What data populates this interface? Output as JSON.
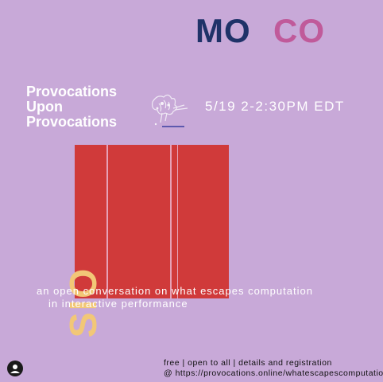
{
  "header": {
    "left_word": "MO",
    "right_word": "CO"
  },
  "event": {
    "title_lines": [
      "Provocations",
      "Upon",
      "Provocations"
    ],
    "date_time": "5/19 2-2:30PM EDT",
    "vertical_word": "SIO",
    "subtitle_line1": "an open conversation on what escapes computation",
    "subtitle_line2": "in interactive performance"
  },
  "footer": {
    "line1": "free | open to all | details and registration",
    "line2": "@ https://provocations.online/whatescapescomputation/"
  },
  "colors": {
    "background": "#c8a9d8",
    "navy": "#1f3268",
    "pink": "#c05a9a",
    "red": "#d03a3a",
    "yellow": "#f2c777"
  },
  "icons": {
    "sketch": "splash-tree-sketch-icon",
    "avatar": "user-avatar-icon"
  }
}
